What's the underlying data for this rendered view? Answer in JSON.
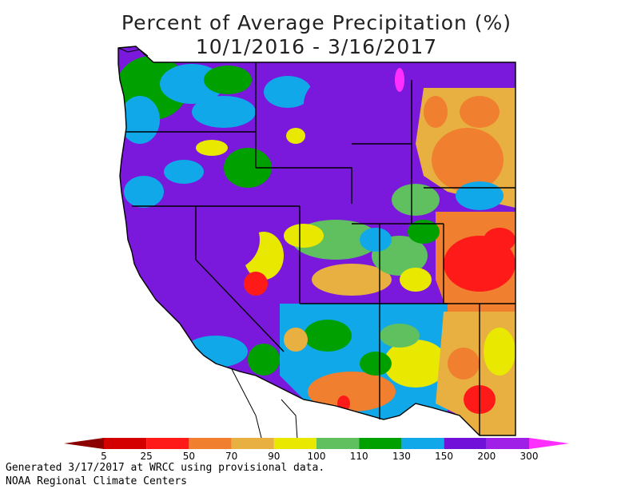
{
  "title": "Percent of Average Precipitation (%)",
  "subtitle": "10/1/2016 - 3/16/2017",
  "legend": {
    "items": [
      {
        "label": "5",
        "color": "#8b0000"
      },
      {
        "label": "25",
        "color": "#d40000"
      },
      {
        "label": "50",
        "color": "#ff1a1a"
      },
      {
        "label": "70",
        "color": "#f08030"
      },
      {
        "label": "90",
        "color": "#e8b040"
      },
      {
        "label": "100",
        "color": "#e8e800"
      },
      {
        "label": "110",
        "color": "#60c060"
      },
      {
        "label": "130",
        "color": "#00a000"
      },
      {
        "label": "150",
        "color": "#10a8e8"
      },
      {
        "label": "200",
        "color": "#7010d8"
      },
      {
        "label": "300",
        "color": "#a020e8"
      },
      {
        "label": "",
        "color": "#ff30ff"
      }
    ]
  },
  "footer": {
    "line1": "Generated 3/17/2017 at WRCC using provisional data.",
    "line2": "NOAA Regional Climate Centers"
  }
}
